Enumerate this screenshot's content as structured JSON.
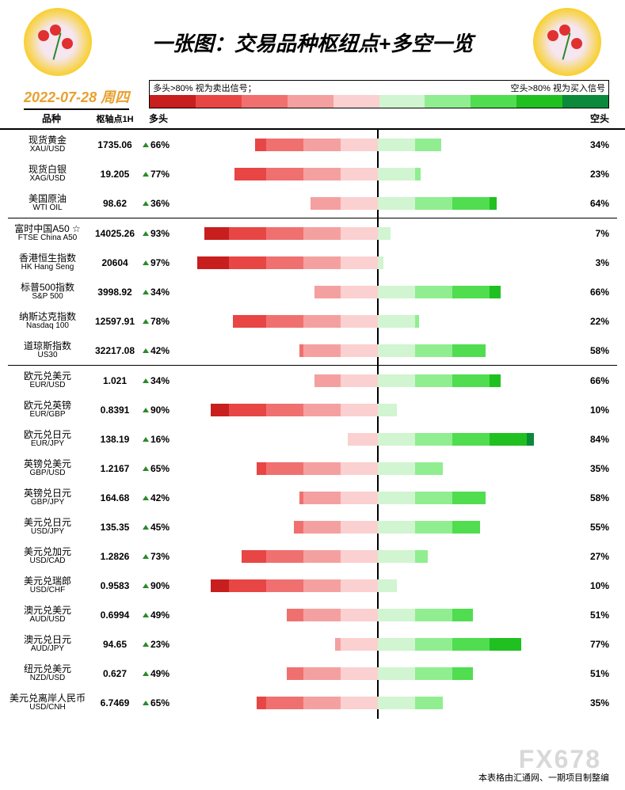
{
  "title": "一张图：交易品种枢纽点+多空一览",
  "date": "2022-07-28 周四",
  "legend": {
    "left_label": "多头>80% 视为卖出信号；",
    "right_label": "空头>80% 视为买入信号",
    "red_colors": [
      "#c81e1e",
      "#e84545",
      "#f07070",
      "#f5a0a0",
      "#fbd0d0"
    ],
    "green_colors": [
      "#d0f5d0",
      "#90ee90",
      "#50dd50",
      "#20c020",
      "#0a8a3a"
    ]
  },
  "columns": {
    "name": "品种",
    "pivot": "枢轴点1H",
    "long": "多头",
    "short": "空头"
  },
  "bar_settings": {
    "max_half_width_pct": 100,
    "segment_size": 20,
    "red_shades": [
      "#fbd0d0",
      "#f5a0a0",
      "#f07070",
      "#e84545",
      "#c81e1e"
    ],
    "green_shades": [
      "#d0f5d0",
      "#90ee90",
      "#50dd50",
      "#20c020",
      "#0a8a3a"
    ]
  },
  "groups": [
    {
      "rows": [
        {
          "name_cn": "现货黄金",
          "name_en": "XAU/USD",
          "pivot": "1735.06",
          "long": 66,
          "short": 34
        },
        {
          "name_cn": "现货白银",
          "name_en": "XAG/USD",
          "pivot": "19.205",
          "long": 77,
          "short": 23
        },
        {
          "name_cn": "美国原油",
          "name_en": "WTI OIL",
          "pivot": "98.62",
          "long": 36,
          "short": 64
        }
      ]
    },
    {
      "rows": [
        {
          "name_cn": "富时中国A50 ☆",
          "name_en": "FTSE China A50",
          "pivot": "14025.26",
          "long": 93,
          "short": 7
        },
        {
          "name_cn": "香港恒生指数",
          "name_en": "HK Hang Seng",
          "pivot": "20604",
          "long": 97,
          "short": 3
        },
        {
          "name_cn": "标普500指数",
          "name_en": "S&P 500",
          "pivot": "3998.92",
          "long": 34,
          "short": 66
        },
        {
          "name_cn": "纳斯达克指数",
          "name_en": "Nasdaq 100",
          "pivot": "12597.91",
          "long": 78,
          "short": 22
        },
        {
          "name_cn": "道琼斯指数",
          "name_en": "US30",
          "pivot": "32217.08",
          "long": 42,
          "short": 58
        }
      ]
    },
    {
      "rows": [
        {
          "name_cn": "欧元兑美元",
          "name_en": "EUR/USD",
          "pivot": "1.021",
          "long": 34,
          "short": 66
        },
        {
          "name_cn": "欧元兑英镑",
          "name_en": "EUR/GBP",
          "pivot": "0.8391",
          "long": 90,
          "short": 10
        },
        {
          "name_cn": "欧元兑日元",
          "name_en": "EUR/JPY",
          "pivot": "138.19",
          "long": 16,
          "short": 84
        },
        {
          "name_cn": "英镑兑美元",
          "name_en": "GBP/USD",
          "pivot": "1.2167",
          "long": 65,
          "short": 35
        },
        {
          "name_cn": "英镑兑日元",
          "name_en": "GBP/JPY",
          "pivot": "164.68",
          "long": 42,
          "short": 58
        },
        {
          "name_cn": "美元兑日元",
          "name_en": "USD/JPY",
          "pivot": "135.35",
          "long": 45,
          "short": 55
        },
        {
          "name_cn": "美元兑加元",
          "name_en": "USD/CAD",
          "pivot": "1.2826",
          "long": 73,
          "short": 27
        },
        {
          "name_cn": "美元兑瑞郎",
          "name_en": "USD/CHF",
          "pivot": "0.9583",
          "long": 90,
          "short": 10
        },
        {
          "name_cn": "澳元兑美元",
          "name_en": "AUD/USD",
          "pivot": "0.6994",
          "long": 49,
          "short": 51
        },
        {
          "name_cn": "澳元兑日元",
          "name_en": "AUD/JPY",
          "pivot": "94.65",
          "long": 23,
          "short": 77
        },
        {
          "name_cn": "纽元兑美元",
          "name_en": "NZD/USD",
          "pivot": "0.627",
          "long": 49,
          "short": 51
        },
        {
          "name_cn": "美元兑离岸人民币",
          "name_en": "USD/CNH",
          "pivot": "6.7469",
          "long": 65,
          "short": 35
        }
      ]
    }
  ],
  "footer": "本表格由汇通网、一期项目制整编",
  "watermark": "FX678"
}
